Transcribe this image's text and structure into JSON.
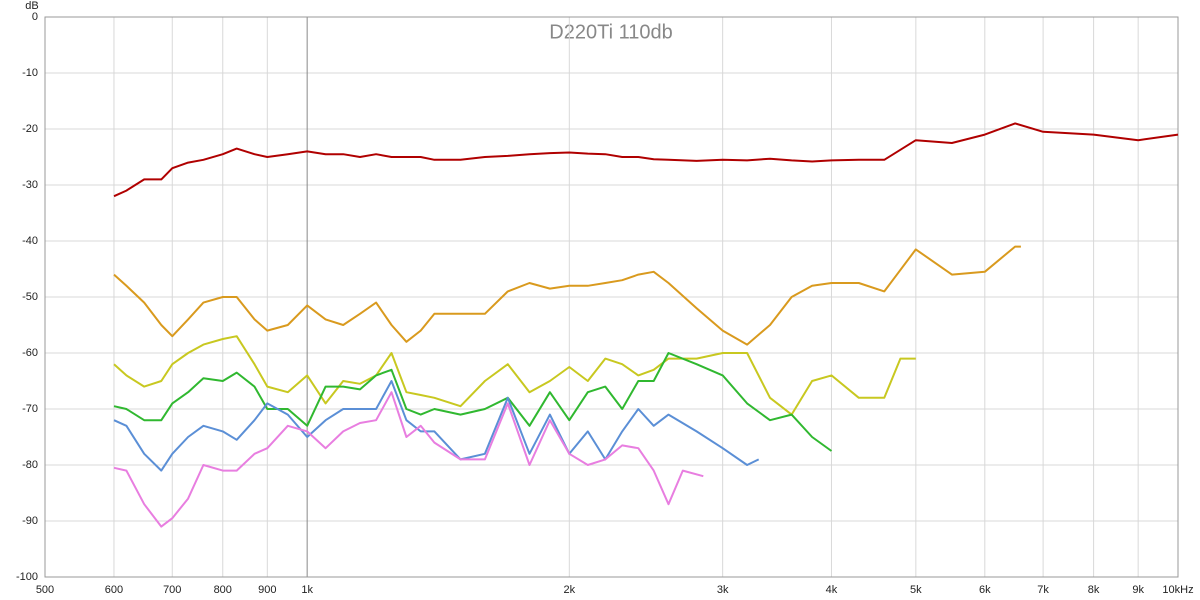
{
  "chart_data": {
    "type": "line",
    "title": "D220Ti 110db",
    "y_label": "dB",
    "xscale": "log",
    "grid": true,
    "xlim": [
      500,
      10000
    ],
    "ylim": [
      -100,
      0
    ],
    "xticks": [
      500,
      600,
      700,
      800,
      900,
      {
        "value": 1000,
        "label": "1k"
      },
      {
        "value": 2000,
        "label": "2k"
      },
      {
        "value": 3000,
        "label": "3k"
      },
      {
        "value": 4000,
        "label": "4k"
      },
      {
        "value": 5000,
        "label": "5k"
      },
      {
        "value": 6000,
        "label": "6k"
      },
      {
        "value": 7000,
        "label": "7k"
      },
      {
        "value": 8000,
        "label": "8k"
      },
      {
        "value": 9000,
        "label": "9k"
      },
      {
        "value": 10000,
        "label": "10kHz"
      }
    ],
    "yticks": [
      0,
      -10,
      -20,
      -30,
      -40,
      -50,
      -60,
      -70,
      -80,
      -90,
      -100
    ],
    "series": [
      {
        "color": "#b00000",
        "x": [
          600,
          620,
          650,
          680,
          700,
          730,
          760,
          800,
          830,
          870,
          900,
          950,
          1000,
          1050,
          1100,
          1150,
          1200,
          1250,
          1300,
          1350,
          1400,
          1500,
          1600,
          1700,
          1800,
          1900,
          2000,
          2100,
          2200,
          2300,
          2400,
          2500,
          2600,
          2800,
          3000,
          3200,
          3400,
          3600,
          3800,
          4000,
          4300,
          4600,
          5000,
          5500,
          6000,
          6500,
          7000,
          8000,
          9000,
          10000
        ],
        "values": [
          -32,
          -31,
          -29,
          -29,
          -27,
          -26,
          -25.5,
          -24.5,
          -23.5,
          -24.5,
          -25,
          -24.5,
          -24,
          -24.5,
          -24.5,
          -25,
          -24.5,
          -25,
          -25,
          -25,
          -25.5,
          -25.5,
          -25,
          -24.8,
          -24.5,
          -24.3,
          -24.2,
          -24.4,
          -24.5,
          -25,
          -25,
          -25.4,
          -25.5,
          -25.7,
          -25.5,
          -25.6,
          -25.3,
          -25.6,
          -25.8,
          -25.6,
          -25.5,
          -25.5,
          -22,
          -22.5,
          -21,
          -19,
          -20.5,
          -21,
          -22,
          -21
        ]
      },
      {
        "color": "#d99a1e",
        "x": [
          600,
          620,
          650,
          680,
          700,
          730,
          760,
          800,
          830,
          870,
          900,
          950,
          1000,
          1050,
          1100,
          1150,
          1200,
          1250,
          1300,
          1350,
          1400,
          1500,
          1600,
          1700,
          1800,
          1900,
          2000,
          2100,
          2200,
          2300,
          2400,
          2500,
          2600,
          2800,
          3000,
          3200,
          3400,
          3600,
          3800,
          4000,
          4300,
          4600,
          5000,
          5500,
          6000,
          6500,
          6600
        ],
        "values": [
          -46,
          -48,
          -51,
          -55,
          -57,
          -54,
          -51,
          -50,
          -50,
          -54,
          -56,
          -55,
          -51.5,
          -54,
          -55,
          -53,
          -51,
          -55,
          -58,
          -56,
          -53,
          -53,
          -53,
          -49,
          -47.5,
          -48.5,
          -48,
          -48,
          -47.5,
          -47,
          -46,
          -45.5,
          -47.5,
          -52,
          -56,
          -58.5,
          -55,
          -50,
          -48,
          -47.5,
          -47.5,
          -49,
          -41.5,
          -46,
          -45.5,
          -41,
          -41
        ]
      },
      {
        "color": "#c8c820",
        "x": [
          600,
          620,
          650,
          680,
          700,
          730,
          760,
          800,
          830,
          870,
          900,
          950,
          1000,
          1050,
          1100,
          1150,
          1200,
          1250,
          1300,
          1350,
          1400,
          1500,
          1600,
          1700,
          1800,
          1900,
          2000,
          2100,
          2200,
          2300,
          2400,
          2500,
          2600,
          2800,
          3000,
          3200,
          3400,
          3600,
          3800,
          4000,
          4300,
          4600,
          4800,
          5000
        ],
        "values": [
          -62,
          -64,
          -66,
          -65,
          -62,
          -60,
          -58.5,
          -57.5,
          -57,
          -62,
          -66,
          -67,
          -64,
          -69,
          -65,
          -65.5,
          -64,
          -60,
          -67,
          -67.5,
          -68,
          -69.5,
          -65,
          -62,
          -67,
          -65,
          -62.5,
          -65,
          -61,
          -62,
          -64,
          -63,
          -61,
          -61,
          -60,
          -60,
          -68,
          -71,
          -65,
          -64,
          -68,
          -68,
          -61,
          -61
        ]
      },
      {
        "color": "#30b830",
        "x": [
          600,
          620,
          650,
          680,
          700,
          730,
          760,
          800,
          830,
          870,
          900,
          950,
          1000,
          1050,
          1100,
          1150,
          1200,
          1250,
          1300,
          1350,
          1400,
          1500,
          1600,
          1700,
          1800,
          1900,
          2000,
          2100,
          2200,
          2300,
          2400,
          2500,
          2600,
          2800,
          3000,
          3200,
          3400,
          3600,
          3800,
          4000
        ],
        "values": [
          -69.5,
          -70,
          -72,
          -72,
          -69,
          -67,
          -64.5,
          -65,
          -63.5,
          -66,
          -70,
          -70,
          -73,
          -66,
          -66,
          -66.5,
          -64,
          -63,
          -70,
          -71,
          -70,
          -71,
          -70,
          -68,
          -73,
          -67,
          -72,
          -67,
          -66,
          -70,
          -65,
          -65,
          -60,
          -62,
          -64,
          -69,
          -72,
          -71,
          -75,
          -77.5
        ]
      },
      {
        "color": "#5b8fd6",
        "x": [
          600,
          620,
          650,
          680,
          700,
          730,
          760,
          800,
          830,
          870,
          900,
          950,
          1000,
          1050,
          1100,
          1150,
          1200,
          1250,
          1300,
          1350,
          1400,
          1500,
          1600,
          1700,
          1800,
          1900,
          2000,
          2100,
          2200,
          2300,
          2400,
          2500,
          2600,
          2800,
          3000,
          3200,
          3300
        ],
        "values": [
          -72,
          -73,
          -78,
          -81,
          -78,
          -75,
          -73,
          -74,
          -75.5,
          -72,
          -69,
          -71,
          -75,
          -72,
          -70,
          -70,
          -70,
          -65,
          -72,
          -74,
          -74,
          -79,
          -78,
          -68,
          -78,
          -71,
          -78,
          -74,
          -79,
          -74,
          -70,
          -73,
          -71,
          -74,
          -77,
          -80,
          -79
        ]
      },
      {
        "color": "#e87ee0",
        "x": [
          600,
          620,
          650,
          680,
          700,
          730,
          760,
          800,
          830,
          870,
          900,
          950,
          1000,
          1050,
          1100,
          1150,
          1200,
          1250,
          1300,
          1350,
          1400,
          1500,
          1600,
          1700,
          1800,
          1900,
          2000,
          2100,
          2200,
          2300,
          2400,
          2500,
          2600,
          2700,
          2850
        ],
        "values": [
          -80.5,
          -81,
          -87,
          -91,
          -89.5,
          -86,
          -80,
          -81,
          -81,
          -78,
          -77,
          -73,
          -74,
          -77,
          -74,
          -72.5,
          -72,
          -67,
          -75,
          -73,
          -76,
          -79,
          -79,
          -69,
          -80,
          -72,
          -78,
          -80,
          -79,
          -76.5,
          -77,
          -81,
          -87,
          -81,
          -82
        ]
      }
    ]
  }
}
